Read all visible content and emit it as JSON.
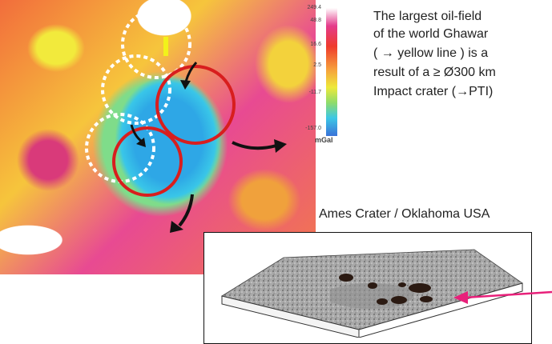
{
  "scale": {
    "ticks": [
      "249.4",
      "48.8",
      "16.6",
      "2.5",
      "-11.7",
      "-157.0"
    ],
    "unit": "mGal"
  },
  "description": [
    "The largest oil-field",
    "of the world Ghawar",
    "( → yellow line ) is a",
    "result of a ≥ Ø300 km",
    "Impact crater (→PTI)"
  ],
  "ames_label": "Ames Crater / Oklahoma USA",
  "colors": {
    "circle_red": "#d81e1e",
    "circle_white": "#ffffff",
    "ghawar_line": "#f2f21a",
    "pointer": "#e8207a"
  }
}
